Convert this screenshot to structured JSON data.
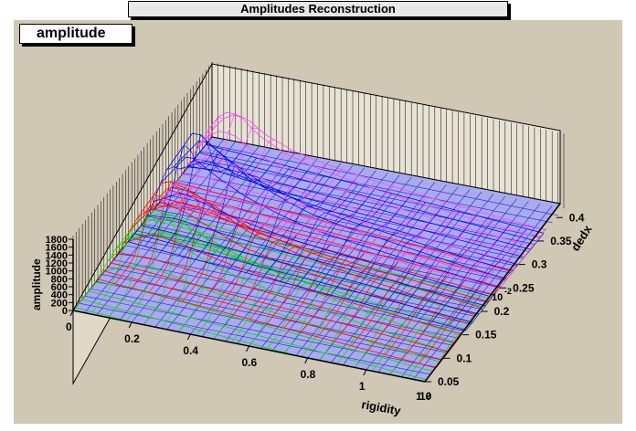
{
  "window": {
    "title": "Amplitudes Reconstruction"
  },
  "stat_box": {
    "label": "amplitude"
  },
  "colors": {
    "canvas_bg": "#d0c7b5",
    "floor_bg": "#aaaaee",
    "floor_grid": "#2222cc",
    "series_colors": [
      "#ff44ff",
      "#0000ee",
      "#ff0000",
      "#00dd00"
    ]
  },
  "chart_data": {
    "type": "lego-3d-surface",
    "title": "amplitude",
    "xlabel": "rigidity",
    "ylabel": "dedx",
    "zlabel": "amplitude",
    "x_ticks": [
      "0",
      "0.2",
      "0.4",
      "0.6",
      "0.8",
      "1"
    ],
    "x_end_label": "1",
    "x_exponent": "10",
    "x_exponent_power": "2",
    "y_ticks": [
      "0.05",
      "0.1",
      "0.15",
      "0.2",
      "0.25",
      "0.3",
      "0.35",
      "0.4"
    ],
    "y_exponent": "10",
    "y_exponent_power": "-2",
    "z_ticks": [
      "0",
      "200",
      "400",
      "600",
      "800",
      "1000",
      "1200",
      "1400",
      "1600",
      "1800"
    ],
    "xlim": [
      0,
      120
    ],
    "ylim": [
      0.0005,
      0.0042
    ],
    "zlim": [
      0,
      1800
    ],
    "grid": true,
    "series": [
      {
        "color": "#ff44ff",
        "rigidity": [
          0,
          5,
          10,
          15,
          20,
          30,
          40,
          60,
          80,
          100,
          120
        ],
        "dedx_peak": 0.0039,
        "peak_amplitude": [
          200,
          900,
          1200,
          1100,
          800,
          500,
          350,
          200,
          120,
          80,
          50
        ]
      },
      {
        "color": "#0000ee",
        "rigidity": [
          0,
          10,
          20,
          30,
          40,
          50,
          60,
          80,
          100,
          120
        ],
        "dedx_peak": 0.003,
        "peak_amplitude": [
          600,
          1800,
          1300,
          900,
          650,
          450,
          350,
          250,
          150,
          80
        ]
      },
      {
        "color": "#ff0000",
        "rigidity": [
          0,
          10,
          20,
          30,
          40,
          60,
          80,
          100,
          120
        ],
        "dedx_peak": 0.0022,
        "peak_amplitude": [
          300,
          1500,
          1350,
          1000,
          700,
          450,
          300,
          200,
          120
        ]
      },
      {
        "color": "#00dd00",
        "rigidity": [
          0,
          10,
          20,
          30,
          40,
          60,
          80,
          100,
          120
        ],
        "dedx_peak": 0.0016,
        "peak_amplitude": [
          200,
          1300,
          1500,
          1200,
          900,
          600,
          400,
          250,
          150
        ]
      }
    ]
  }
}
